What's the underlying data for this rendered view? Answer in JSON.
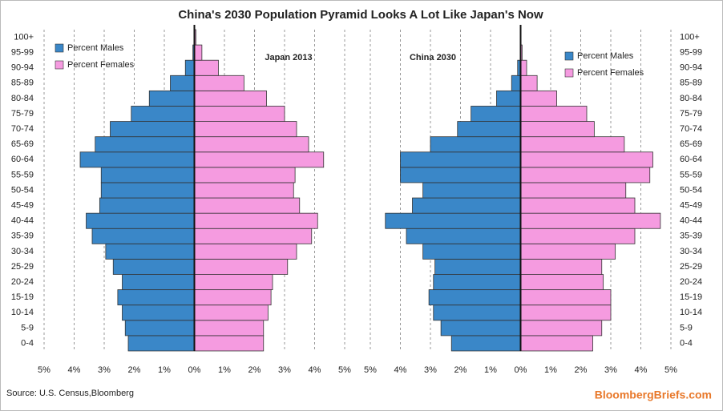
{
  "title": "China's 2030 Population Pyramid Looks A Lot Like Japan's Now",
  "source": "Source: U.S. Census,Bloomberg",
  "brand": "BloombergBriefs.com",
  "chart_data": [
    {
      "type": "pyramid",
      "annotation": "Japan 2013",
      "legend": "upper left",
      "grid": true,
      "categories": [
        "0-4",
        "5-9",
        "10-14",
        "15-19",
        "20-24",
        "25-29",
        "30-34",
        "35-39",
        "40-44",
        "45-49",
        "50-54",
        "55-59",
        "60-64",
        "65-69",
        "70-74",
        "75-79",
        "80-84",
        "85-89",
        "90-94",
        "95-99",
        "100+"
      ],
      "series": [
        {
          "name": "Percent Males",
          "color": "#3a87c8",
          "values": [
            -2.2,
            -2.3,
            -2.4,
            -2.55,
            -2.4,
            -2.7,
            -2.95,
            -3.4,
            -3.6,
            -3.15,
            -3.1,
            -3.1,
            -3.8,
            -3.3,
            -2.8,
            -2.1,
            -1.5,
            -0.8,
            -0.3,
            -0.05,
            0
          ]
        },
        {
          "name": "Percent Females",
          "color": "#f59be0",
          "values": [
            2.3,
            2.3,
            2.45,
            2.55,
            2.6,
            3.1,
            3.4,
            3.9,
            4.1,
            3.5,
            3.3,
            3.35,
            4.3,
            3.8,
            3.4,
            3.0,
            2.4,
            1.65,
            0.8,
            0.25,
            0.05
          ]
        }
      ],
      "xlim": [
        -5,
        5
      ],
      "xticks": [
        {
          "value": -5,
          "label": "5%"
        },
        {
          "value": -4,
          "label": "4%"
        },
        {
          "value": -3,
          "label": "3%"
        },
        {
          "value": -2,
          "label": "2%"
        },
        {
          "value": -1,
          "label": "1%"
        },
        {
          "value": 0,
          "label": "0%"
        },
        {
          "value": 1,
          "label": "1%"
        },
        {
          "value": 2,
          "label": "2%"
        },
        {
          "value": 3,
          "label": "3%"
        },
        {
          "value": 4,
          "label": "4%"
        },
        {
          "value": 5,
          "label": "5%"
        }
      ]
    },
    {
      "type": "pyramid",
      "annotation": "China 2030",
      "legend": "upper right",
      "grid": true,
      "categories": [
        "0-4",
        "5-9",
        "10-14",
        "15-19",
        "20-24",
        "25-29",
        "30-34",
        "35-39",
        "40-44",
        "45-49",
        "50-54",
        "55-59",
        "60-64",
        "65-69",
        "70-74",
        "75-79",
        "80-84",
        "85-89",
        "90-94",
        "95-99",
        "100+"
      ],
      "series": [
        {
          "name": "Percent Males",
          "color": "#3a87c8",
          "values": [
            -2.3,
            -2.65,
            -2.9,
            -3.05,
            -2.9,
            -2.85,
            -3.25,
            -3.8,
            -4.5,
            -3.6,
            -3.25,
            -4.0,
            -4.0,
            -3.0,
            -2.1,
            -1.65,
            -0.8,
            -0.3,
            -0.1,
            0,
            0
          ]
        },
        {
          "name": "Percent Females",
          "color": "#f59be0",
          "values": [
            2.4,
            2.7,
            3.0,
            3.0,
            2.75,
            2.7,
            3.15,
            3.8,
            4.65,
            3.8,
            3.5,
            4.3,
            4.4,
            3.45,
            2.45,
            2.2,
            1.2,
            0.55,
            0.2,
            0.05,
            0
          ]
        }
      ],
      "xlim": [
        -5,
        5
      ],
      "xticks": [
        {
          "value": -5,
          "label": "5%"
        },
        {
          "value": -4,
          "label": "4%"
        },
        {
          "value": -3,
          "label": "3%"
        },
        {
          "value": -2,
          "label": "2%"
        },
        {
          "value": -1,
          "label": "1%"
        },
        {
          "value": 0,
          "label": "0%"
        },
        {
          "value": 1,
          "label": "1%"
        },
        {
          "value": 2,
          "label": "2%"
        },
        {
          "value": 3,
          "label": "3%"
        },
        {
          "value": 4,
          "label": "4%"
        },
        {
          "value": 5,
          "label": "5%"
        }
      ]
    }
  ]
}
